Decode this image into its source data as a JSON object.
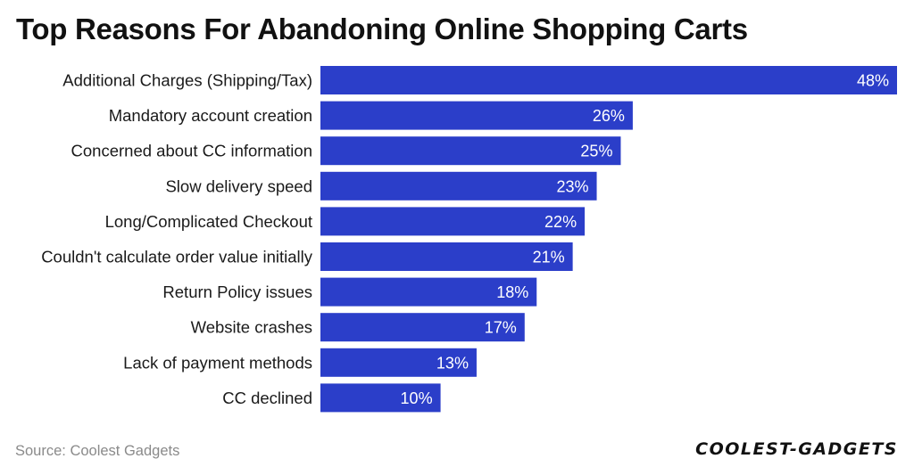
{
  "title": "Top Reasons For Abandoning Online Shopping Carts",
  "source": "Source: Coolest Gadgets",
  "logo": {
    "part1": "COOLEST",
    "sep": "-",
    "part2": "GADGETS"
  },
  "colors": {
    "bar": "#2b3ec9",
    "value_text": "#ffffff",
    "label_text": "#1a1a1a"
  },
  "chart_data": {
    "type": "bar",
    "orientation": "horizontal",
    "categories": [
      "Additional Charges (Shipping/Tax)",
      "Mandatory account creation",
      "Concerned about CC information",
      "Slow delivery speed",
      "Long/Complicated Checkout",
      "Couldn't calculate order value initially",
      "Return Policy issues",
      "Website crashes",
      "Lack of payment methods",
      "CC declined"
    ],
    "values": [
      48,
      26,
      25,
      23,
      22,
      21,
      18,
      17,
      13,
      10
    ],
    "value_labels": [
      "48%",
      "26%",
      "25%",
      "23%",
      "22%",
      "21%",
      "18%",
      "17%",
      "13%",
      "10%"
    ],
    "unit": "%",
    "xlim": [
      0,
      48
    ],
    "grid": false,
    "legend": "none"
  }
}
